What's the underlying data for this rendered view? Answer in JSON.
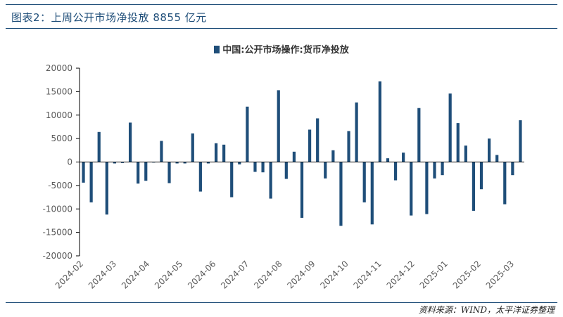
{
  "figure": {
    "title": "图表2：上周公开市场净投放 8855 亿元",
    "source": "资料来源：WIND，太平洋证券整理"
  },
  "colors": {
    "bar": "#1f4e79",
    "axis": "#000000",
    "text": "#595959",
    "rule": "#1f4e79"
  },
  "chart_data": {
    "type": "bar",
    "title": "",
    "xlabel": "",
    "ylabel": "",
    "ylim": [
      -20000,
      20000
    ],
    "yticks": [
      20000,
      15000,
      10000,
      5000,
      0,
      -5000,
      -10000,
      -15000,
      -20000
    ],
    "grid": false,
    "legend_position": "top-center",
    "x_tick_labels": [
      "2024-02",
      "2024-03",
      "2024-04",
      "2024-05",
      "2024-06",
      "2024-07",
      "2024-08",
      "2024-09",
      "2024-10",
      "2024-11",
      "2024-12",
      "2025-01",
      "2025-02",
      "2025-03"
    ],
    "series": [
      {
        "name": "中国:公开市场操作:货币净投放",
        "values": [
          -4400,
          -8600,
          6400,
          -11200,
          -300,
          -200,
          8400,
          -4600,
          -4000,
          -100,
          4500,
          -4500,
          -300,
          -300,
          6100,
          -6300,
          -300,
          4000,
          3700,
          -7500,
          -500,
          11800,
          -2100,
          -2200,
          -7800,
          15300,
          -3600,
          2200,
          -11900,
          6900,
          9300,
          -3500,
          2500,
          -13600,
          6600,
          12700,
          -8600,
          -13300,
          17200,
          800,
          -3900,
          2000,
          -11400,
          11500,
          -11100,
          -3500,
          -2800,
          14600,
          8300,
          3500,
          -10400,
          -5800,
          5000,
          1500,
          -9000,
          -2800,
          8900
        ]
      }
    ]
  }
}
